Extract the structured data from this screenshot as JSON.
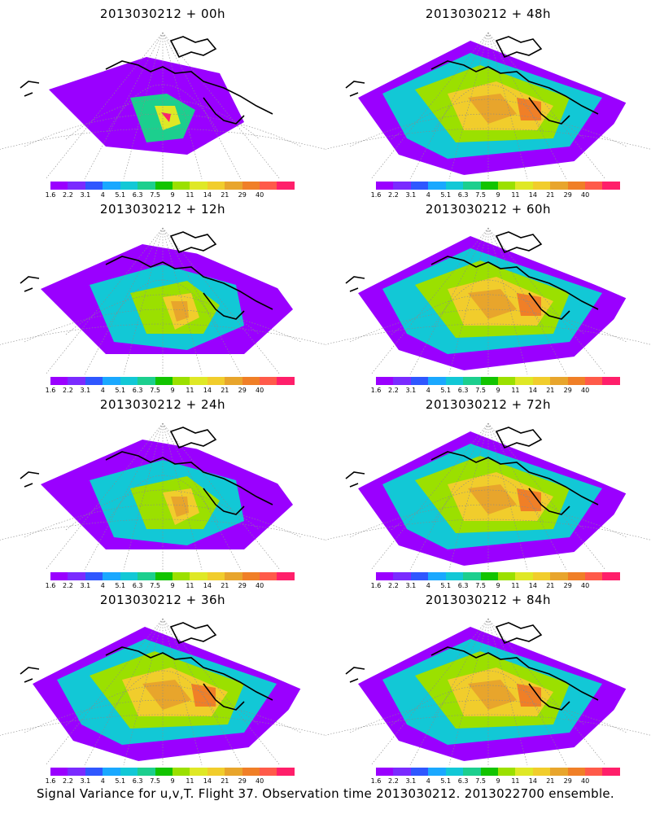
{
  "colorbar": {
    "colors": [
      "#9a00ff",
      "#7a2bff",
      "#2f57ff",
      "#1aa8ff",
      "#12c8d6",
      "#1ccf8e",
      "#12c400",
      "#9be000",
      "#dfe826",
      "#f1cd2c",
      "#e8a52c",
      "#f07f27",
      "#ff5a4a",
      "#ff1f6a"
    ],
    "tick_labels": [
      "1.6",
      "2.2",
      "3.1",
      "4",
      "5.1",
      "6.3",
      "7.5",
      "9",
      "11",
      "14",
      "21",
      "29",
      "40"
    ]
  },
  "panels": [
    {
      "title": "2013030212 + 00h",
      "level": "low"
    },
    {
      "title": "2013030212 + 48h",
      "level": "high"
    },
    {
      "title": "2013030212 + 12h",
      "level": "mid"
    },
    {
      "title": "2013030212 + 60h",
      "level": "high"
    },
    {
      "title": "2013030212 + 24h",
      "level": "mid"
    },
    {
      "title": "2013030212 + 72h",
      "level": "high"
    },
    {
      "title": "2013030212 + 36h",
      "level": "high"
    },
    {
      "title": "2013030212 + 84h",
      "level": "high"
    }
  ],
  "caption": "Signal Variance for u,v,T. Flight 37. Observation time 2013030212. 2013022700 ensemble."
}
